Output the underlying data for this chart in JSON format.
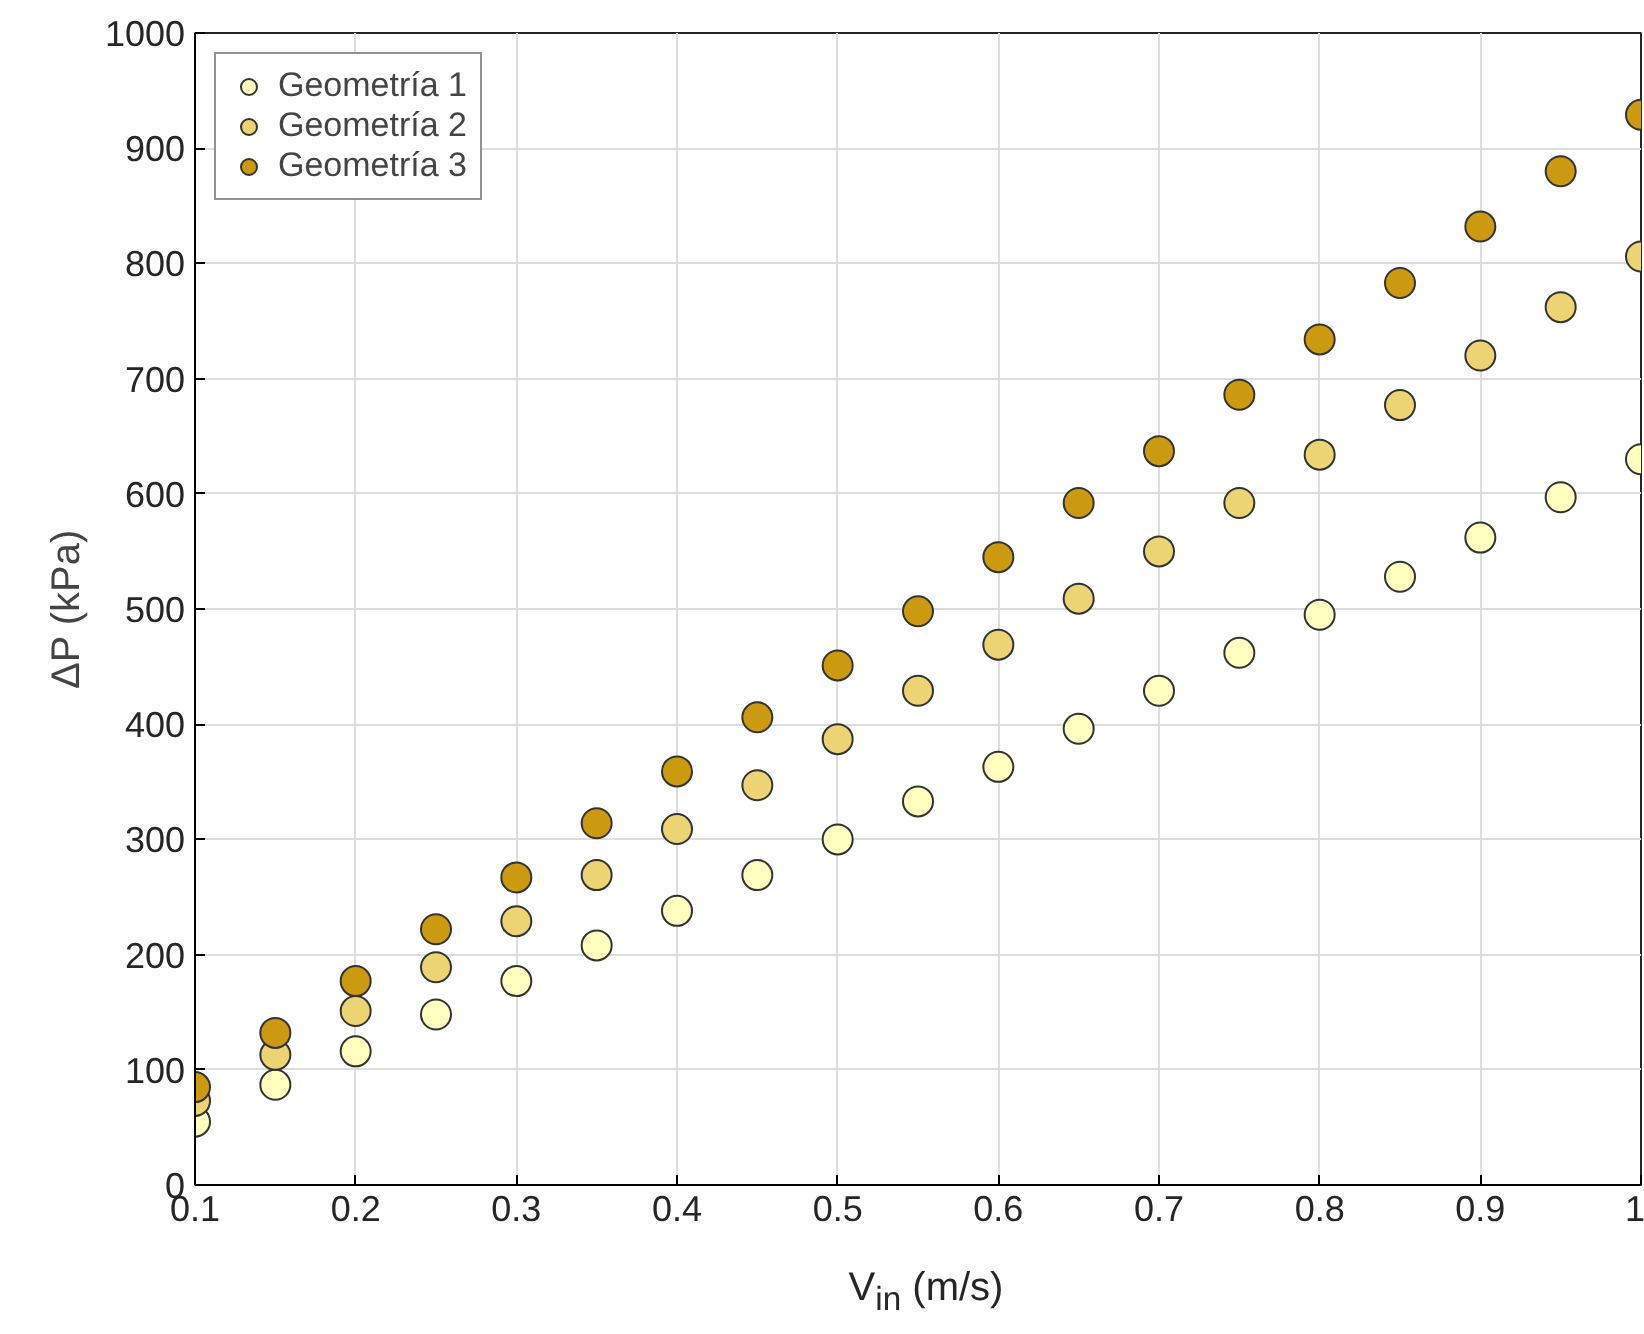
{
  "chart_data": {
    "type": "scatter",
    "xlabel": "V$_{in}$ (m/s)",
    "ylabel": "ΔP (kPa)",
    "x": [
      0.1,
      0.15,
      0.2,
      0.25,
      0.3,
      0.35,
      0.4,
      0.45,
      0.5,
      0.55,
      0.6,
      0.65,
      0.7,
      0.75,
      0.8,
      0.85,
      0.9,
      0.95,
      1.0
    ],
    "series": [
      {
        "name": "Geometría 1",
        "color": "#ffffbf",
        "values": [
          55,
          87,
          116,
          148,
          177,
          208,
          238,
          269,
          300,
          333,
          363,
          396,
          429,
          462,
          495,
          528,
          562,
          597,
          630
        ]
      },
      {
        "name": "Geometría 2",
        "color": "#ecd374",
        "values": [
          73,
          113,
          151,
          189,
          229,
          269,
          309,
          347,
          387,
          429,
          469,
          509,
          550,
          592,
          634,
          677,
          720,
          762,
          806
        ]
      },
      {
        "name": "Geometría 3",
        "color": "#cc9a10",
        "values": [
          85,
          132,
          177,
          222,
          267,
          314,
          359,
          406,
          451,
          498,
          545,
          592,
          637,
          686,
          734,
          783,
          832,
          880,
          929
        ]
      }
    ],
    "xlim": [
      0.1,
      1.0
    ],
    "ylim": [
      0,
      1000
    ],
    "xticks": [
      0.1,
      0.2,
      0.3,
      0.4,
      0.5,
      0.6,
      0.7,
      0.8,
      0.9,
      {
        "value": 1.0,
        "label": "1"
      }
    ],
    "yticks": [
      0,
      100,
      200,
      300,
      400,
      500,
      600,
      700,
      800,
      900,
      1000
    ],
    "grid": true,
    "legend": "top left",
    "marker": "circle"
  }
}
